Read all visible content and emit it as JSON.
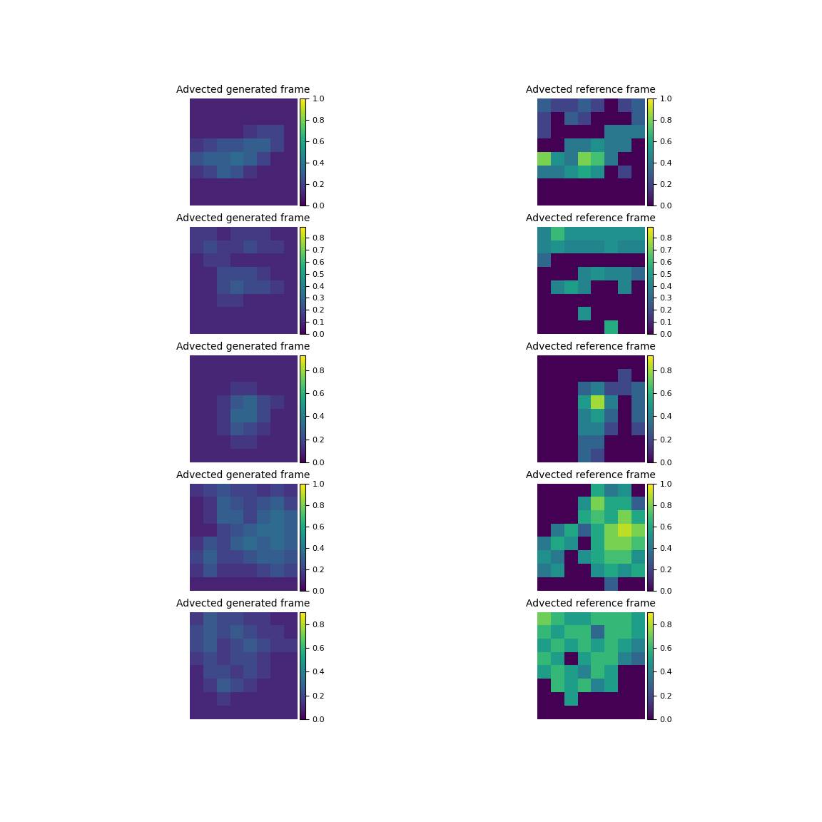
{
  "chart_data": [
    {
      "type": "heatmap",
      "title": "Advected generated frame",
      "tick_labels": false,
      "color_range": [
        0.0,
        1.0
      ],
      "color_ticks": [
        0.0,
        0.2,
        0.4,
        0.6,
        0.8,
        1.0
      ],
      "cells": [
        [
          0.1,
          0.1,
          0.1,
          0.1,
          0.1,
          0.1,
          0.1,
          0.1
        ],
        [
          0.1,
          0.1,
          0.1,
          0.1,
          0.1,
          0.1,
          0.1,
          0.1
        ],
        [
          0.1,
          0.1,
          0.1,
          0.1,
          0.15,
          0.2,
          0.2,
          0.1
        ],
        [
          0.15,
          0.2,
          0.25,
          0.25,
          0.3,
          0.3,
          0.2,
          0.1
        ],
        [
          0.25,
          0.3,
          0.3,
          0.35,
          0.3,
          0.2,
          0.1,
          0.1
        ],
        [
          0.15,
          0.2,
          0.3,
          0.25,
          0.15,
          0.1,
          0.1,
          0.1
        ],
        [
          0.1,
          0.1,
          0.1,
          0.1,
          0.1,
          0.1,
          0.1,
          0.1
        ],
        [
          0.1,
          0.1,
          0.1,
          0.1,
          0.1,
          0.1,
          0.1,
          0.1
        ]
      ]
    },
    {
      "type": "heatmap",
      "title": "Advected reference frame",
      "tick_labels": false,
      "color_range": [
        0.0,
        1.0
      ],
      "color_ticks": [
        0.0,
        0.2,
        0.4,
        0.6,
        0.8,
        1.0
      ],
      "cells": [
        [
          0.3,
          0.2,
          0.2,
          0.3,
          0.2,
          0.0,
          0.2,
          0.3
        ],
        [
          0.2,
          0.0,
          0.3,
          0.2,
          0.0,
          0.0,
          0.0,
          0.3
        ],
        [
          0.2,
          0.0,
          0.0,
          0.0,
          0.0,
          0.4,
          0.4,
          0.4
        ],
        [
          0.0,
          0.0,
          0.4,
          0.4,
          0.5,
          0.4,
          0.4,
          0.0
        ],
        [
          0.8,
          0.5,
          0.4,
          0.8,
          0.7,
          0.4,
          0.0,
          0.0
        ],
        [
          0.4,
          0.4,
          0.5,
          0.6,
          0.5,
          0.0,
          0.2,
          0.0
        ],
        [
          0.0,
          0.0,
          0.0,
          0.0,
          0.0,
          0.0,
          0.0,
          0.0
        ],
        [
          0.0,
          0.0,
          0.0,
          0.0,
          0.0,
          0.0,
          0.0,
          0.0
        ]
      ]
    },
    {
      "type": "heatmap",
      "title": "Advected generated frame",
      "tick_labels": false,
      "color_range": [
        0.0,
        0.89
      ],
      "color_ticks": [
        0.0,
        0.1,
        0.2,
        0.3,
        0.4,
        0.5,
        0.6,
        0.7,
        0.8
      ],
      "cells": [
        [
          0.15,
          0.15,
          0.1,
          0.15,
          0.15,
          0.15,
          0.1,
          0.1
        ],
        [
          0.15,
          0.2,
          0.15,
          0.15,
          0.2,
          0.15,
          0.15,
          0.1
        ],
        [
          0.1,
          0.15,
          0.15,
          0.1,
          0.1,
          0.1,
          0.1,
          0.1
        ],
        [
          0.1,
          0.1,
          0.2,
          0.2,
          0.2,
          0.15,
          0.1,
          0.1
        ],
        [
          0.1,
          0.1,
          0.2,
          0.25,
          0.2,
          0.2,
          0.15,
          0.1
        ],
        [
          0.1,
          0.1,
          0.15,
          0.15,
          0.1,
          0.1,
          0.1,
          0.1
        ],
        [
          0.1,
          0.1,
          0.1,
          0.1,
          0.1,
          0.1,
          0.1,
          0.1
        ],
        [
          0.1,
          0.1,
          0.1,
          0.1,
          0.1,
          0.1,
          0.1,
          0.1
        ]
      ]
    },
    {
      "type": "heatmap",
      "title": "Advected reference frame",
      "tick_labels": false,
      "color_range": [
        0.0,
        0.89
      ],
      "color_ticks": [
        0.0,
        0.1,
        0.2,
        0.3,
        0.4,
        0.5,
        0.6,
        0.7,
        0.8
      ],
      "cells": [
        [
          0.4,
          0.6,
          0.45,
          0.45,
          0.45,
          0.45,
          0.45,
          0.45
        ],
        [
          0.4,
          0.45,
          0.4,
          0.4,
          0.4,
          0.45,
          0.4,
          0.4
        ],
        [
          0.3,
          0.0,
          0.0,
          0.0,
          0.0,
          0.0,
          0.0,
          0.0
        ],
        [
          0.0,
          0.0,
          0.0,
          0.4,
          0.45,
          0.4,
          0.4,
          0.3
        ],
        [
          0.0,
          0.4,
          0.5,
          0.4,
          0.0,
          0.0,
          0.4,
          0.0
        ],
        [
          0.0,
          0.0,
          0.0,
          0.0,
          0.0,
          0.0,
          0.0,
          0.0
        ],
        [
          0.0,
          0.0,
          0.0,
          0.45,
          0.0,
          0.0,
          0.0,
          0.0
        ],
        [
          0.0,
          0.0,
          0.0,
          0.0,
          0.0,
          0.55,
          0.0,
          0.0
        ]
      ]
    },
    {
      "type": "heatmap",
      "title": "Advected generated frame",
      "tick_labels": false,
      "color_range": [
        0.0,
        0.93
      ],
      "color_ticks": [
        0.0,
        0.2,
        0.4,
        0.6,
        0.8
      ],
      "cells": [
        [
          0.1,
          0.1,
          0.1,
          0.1,
          0.1,
          0.1,
          0.1,
          0.1
        ],
        [
          0.1,
          0.1,
          0.1,
          0.1,
          0.1,
          0.1,
          0.1,
          0.1
        ],
        [
          0.1,
          0.1,
          0.1,
          0.15,
          0.15,
          0.1,
          0.1,
          0.1
        ],
        [
          0.1,
          0.1,
          0.15,
          0.25,
          0.3,
          0.2,
          0.15,
          0.1
        ],
        [
          0.1,
          0.1,
          0.15,
          0.3,
          0.3,
          0.2,
          0.1,
          0.1
        ],
        [
          0.1,
          0.1,
          0.15,
          0.25,
          0.2,
          0.15,
          0.1,
          0.1
        ],
        [
          0.1,
          0.1,
          0.1,
          0.15,
          0.15,
          0.1,
          0.1,
          0.1
        ],
        [
          0.1,
          0.1,
          0.1,
          0.1,
          0.1,
          0.1,
          0.1,
          0.1
        ]
      ]
    },
    {
      "type": "heatmap",
      "title": "Advected reference frame",
      "tick_labels": false,
      "color_range": [
        0.0,
        0.93
      ],
      "color_ticks": [
        0.0,
        0.2,
        0.4,
        0.6,
        0.8
      ],
      "cells": [
        [
          0.0,
          0.0,
          0.0,
          0.0,
          0.0,
          0.0,
          0.0,
          0.0
        ],
        [
          0.0,
          0.0,
          0.0,
          0.0,
          0.0,
          0.0,
          0.2,
          0.0
        ],
        [
          0.0,
          0.0,
          0.0,
          0.3,
          0.4,
          0.2,
          0.2,
          0.3
        ],
        [
          0.0,
          0.0,
          0.0,
          0.5,
          0.8,
          0.4,
          0.0,
          0.3
        ],
        [
          0.0,
          0.0,
          0.0,
          0.4,
          0.5,
          0.3,
          0.0,
          0.3
        ],
        [
          0.0,
          0.0,
          0.0,
          0.4,
          0.4,
          0.2,
          0.0,
          0.2
        ],
        [
          0.0,
          0.0,
          0.0,
          0.3,
          0.3,
          0.0,
          0.0,
          0.0
        ],
        [
          0.0,
          0.0,
          0.0,
          0.3,
          0.2,
          0.0,
          0.0,
          0.0
        ]
      ]
    },
    {
      "type": "heatmap",
      "title": "Advected generated frame",
      "tick_labels": false,
      "color_range": [
        0.0,
        1.0
      ],
      "color_ticks": [
        0.0,
        0.2,
        0.4,
        0.6,
        0.8,
        1.0
      ],
      "cells": [
        [
          0.15,
          0.2,
          0.25,
          0.2,
          0.2,
          0.15,
          0.2,
          0.15
        ],
        [
          0.1,
          0.15,
          0.3,
          0.25,
          0.2,
          0.25,
          0.3,
          0.2
        ],
        [
          0.1,
          0.15,
          0.3,
          0.3,
          0.2,
          0.3,
          0.35,
          0.3
        ],
        [
          0.1,
          0.1,
          0.2,
          0.25,
          0.3,
          0.35,
          0.35,
          0.3
        ],
        [
          0.15,
          0.25,
          0.2,
          0.3,
          0.35,
          0.3,
          0.35,
          0.3
        ],
        [
          0.2,
          0.3,
          0.2,
          0.2,
          0.25,
          0.3,
          0.3,
          0.25
        ],
        [
          0.15,
          0.25,
          0.15,
          0.15,
          0.15,
          0.2,
          0.25,
          0.2
        ],
        [
          0.1,
          0.1,
          0.1,
          0.1,
          0.1,
          0.1,
          0.1,
          0.1
        ]
      ]
    },
    {
      "type": "heatmap",
      "title": "Advected reference frame",
      "tick_labels": false,
      "color_range": [
        0.0,
        1.0
      ],
      "color_ticks": [
        0.0,
        0.2,
        0.4,
        0.6,
        0.8,
        1.0
      ],
      "cells": [
        [
          0.0,
          0.0,
          0.0,
          0.0,
          0.6,
          0.4,
          0.5,
          0.0
        ],
        [
          0.0,
          0.0,
          0.0,
          0.5,
          0.8,
          0.6,
          0.6,
          0.3
        ],
        [
          0.0,
          0.0,
          0.0,
          0.6,
          0.7,
          0.6,
          0.8,
          0.6
        ],
        [
          0.0,
          0.4,
          0.6,
          0.3,
          0.6,
          0.8,
          0.9,
          0.8
        ],
        [
          0.4,
          0.6,
          0.5,
          0.0,
          0.6,
          0.8,
          0.8,
          0.7
        ],
        [
          0.5,
          0.4,
          0.0,
          0.5,
          0.6,
          0.7,
          0.7,
          0.5
        ],
        [
          0.4,
          0.5,
          0.0,
          0.0,
          0.5,
          0.6,
          0.5,
          0.6
        ],
        [
          0.0,
          0.0,
          0.0,
          0.0,
          0.0,
          0.3,
          0.0,
          0.0
        ]
      ]
    },
    {
      "type": "heatmap",
      "title": "Advected generated frame",
      "tick_labels": false,
      "color_range": [
        0.0,
        0.9
      ],
      "color_ticks": [
        0.0,
        0.2,
        0.4,
        0.6,
        0.8
      ],
      "cells": [
        [
          0.15,
          0.25,
          0.2,
          0.2,
          0.15,
          0.15,
          0.1,
          0.1
        ],
        [
          0.2,
          0.25,
          0.2,
          0.25,
          0.2,
          0.15,
          0.15,
          0.1
        ],
        [
          0.2,
          0.25,
          0.15,
          0.2,
          0.25,
          0.2,
          0.15,
          0.15
        ],
        [
          0.15,
          0.2,
          0.15,
          0.2,
          0.2,
          0.15,
          0.1,
          0.1
        ],
        [
          0.1,
          0.2,
          0.2,
          0.15,
          0.2,
          0.15,
          0.1,
          0.1
        ],
        [
          0.1,
          0.15,
          0.25,
          0.2,
          0.15,
          0.1,
          0.1,
          0.1
        ],
        [
          0.1,
          0.1,
          0.15,
          0.1,
          0.1,
          0.1,
          0.1,
          0.1
        ],
        [
          0.1,
          0.1,
          0.1,
          0.1,
          0.1,
          0.1,
          0.1,
          0.1
        ]
      ]
    },
    {
      "type": "heatmap",
      "title": "Advected reference frame",
      "tick_labels": false,
      "color_range": [
        0.0,
        0.9
      ],
      "color_ticks": [
        0.0,
        0.2,
        0.4,
        0.6,
        0.8
      ],
      "cells": [
        [
          0.7,
          0.6,
          0.5,
          0.5,
          0.6,
          0.6,
          0.6,
          0.5
        ],
        [
          0.6,
          0.5,
          0.6,
          0.6,
          0.3,
          0.6,
          0.6,
          0.5
        ],
        [
          0.5,
          0.6,
          0.5,
          0.6,
          0.5,
          0.6,
          0.5,
          0.4
        ],
        [
          0.6,
          0.5,
          0.0,
          0.5,
          0.6,
          0.6,
          0.4,
          0.3
        ],
        [
          0.5,
          0.6,
          0.5,
          0.4,
          0.6,
          0.5,
          0.0,
          0.0
        ],
        [
          0.0,
          0.6,
          0.5,
          0.6,
          0.4,
          0.5,
          0.0,
          0.0
        ],
        [
          0.0,
          0.0,
          0.5,
          0.0,
          0.0,
          0.0,
          0.0,
          0.0
        ],
        [
          0.0,
          0.0,
          0.0,
          0.0,
          0.0,
          0.0,
          0.0,
          0.0
        ]
      ]
    }
  ]
}
